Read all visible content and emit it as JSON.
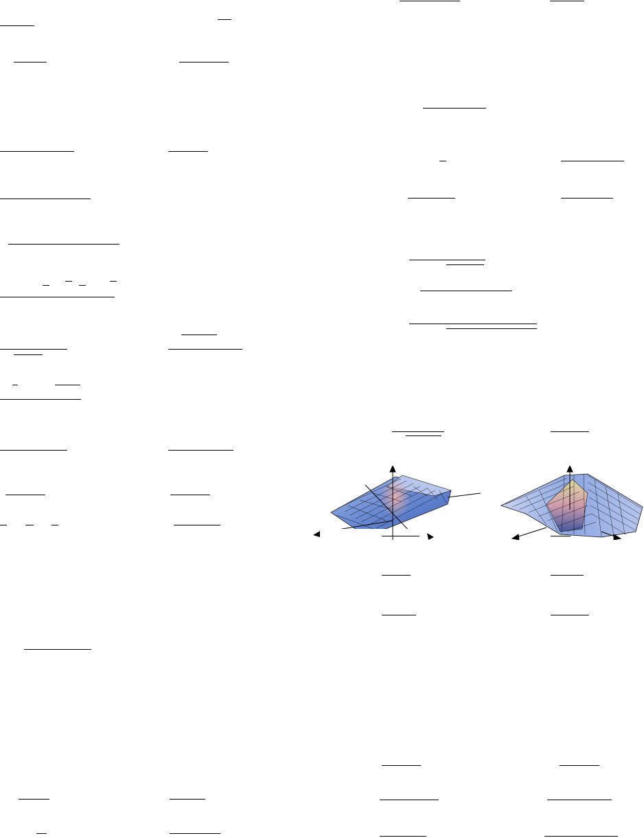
{
  "page": {
    "description_text": "",
    "background": "#ffffff",
    "ink": "#000000"
  },
  "figures": [
    {
      "name": "saddle-surface-left",
      "colors": {
        "surface_light": "#a9b9e8",
        "surface_mid": "#6f8fd6",
        "surface_dark": "#3f62b8",
        "peak": "#d9a5a8",
        "mesh": "#1a1a1a"
      }
    },
    {
      "name": "twisted-surface-right",
      "colors": {
        "surface_light": "#c8d4f2",
        "surface_mid": "#8ea6e0",
        "surface_dark": "#3a4f9a",
        "accent_yellow": "#e8e29a",
        "accent_pink": "#d59aa6",
        "mesh": "#111111"
      }
    }
  ]
}
